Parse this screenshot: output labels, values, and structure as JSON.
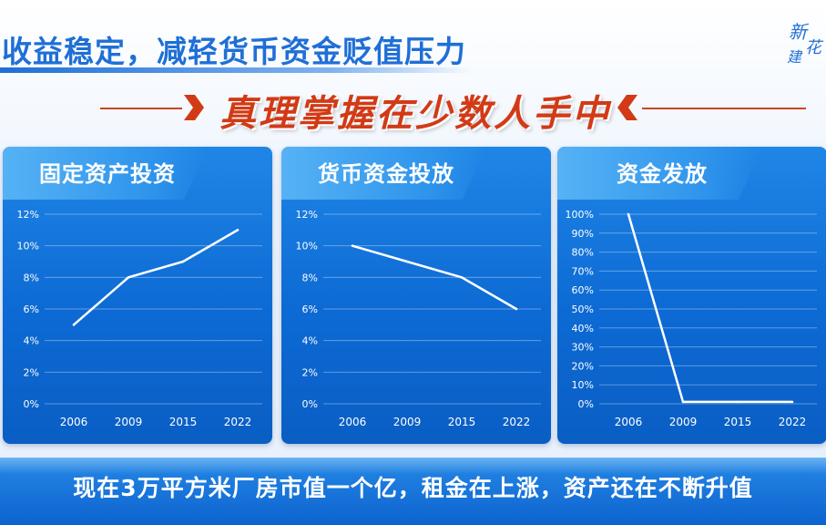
{
  "headline": "收益稳定，减轻货币资金贬值压力",
  "banner": "真理掌握在少数人手中",
  "logo": {
    "text": "新·建·花",
    "color": "#1f6fd6"
  },
  "colors": {
    "accent": "#1f6fd6",
    "banner_red": "#d23a16",
    "card_blue": "#0d6ad4"
  },
  "chart_data": [
    {
      "type": "line",
      "title": "固定资产投资",
      "categories": [
        "2006",
        "2009",
        "2015",
        "2022"
      ],
      "values": [
        5,
        8,
        9,
        11
      ],
      "ylim": [
        0,
        12
      ],
      "yticks": [
        "0%",
        "2%",
        "4%",
        "6%",
        "8%",
        "10%",
        "12%"
      ],
      "grid": true
    },
    {
      "type": "line",
      "title": "货币资金投放",
      "categories": [
        "2006",
        "2009",
        "2015",
        "2022"
      ],
      "values": [
        10,
        9,
        8,
        6
      ],
      "ylim": [
        0,
        12
      ],
      "yticks": [
        "0%",
        "2%",
        "4%",
        "6%",
        "8%",
        "10%",
        "12%"
      ],
      "grid": true
    },
    {
      "type": "line",
      "title": "资金发放",
      "categories": [
        "2006",
        "2009",
        "2015",
        "2022"
      ],
      "values": [
        100,
        1,
        1,
        1
      ],
      "ylim": [
        0,
        100
      ],
      "yticks": [
        "0%",
        "10%",
        "20%",
        "30%",
        "40%",
        "50%",
        "60%",
        "70%",
        "80%",
        "90%",
        "100%"
      ],
      "grid": true
    }
  ],
  "footer": "现在3万平方米厂房市值一个亿，租金在上涨，资产还在不断升值"
}
